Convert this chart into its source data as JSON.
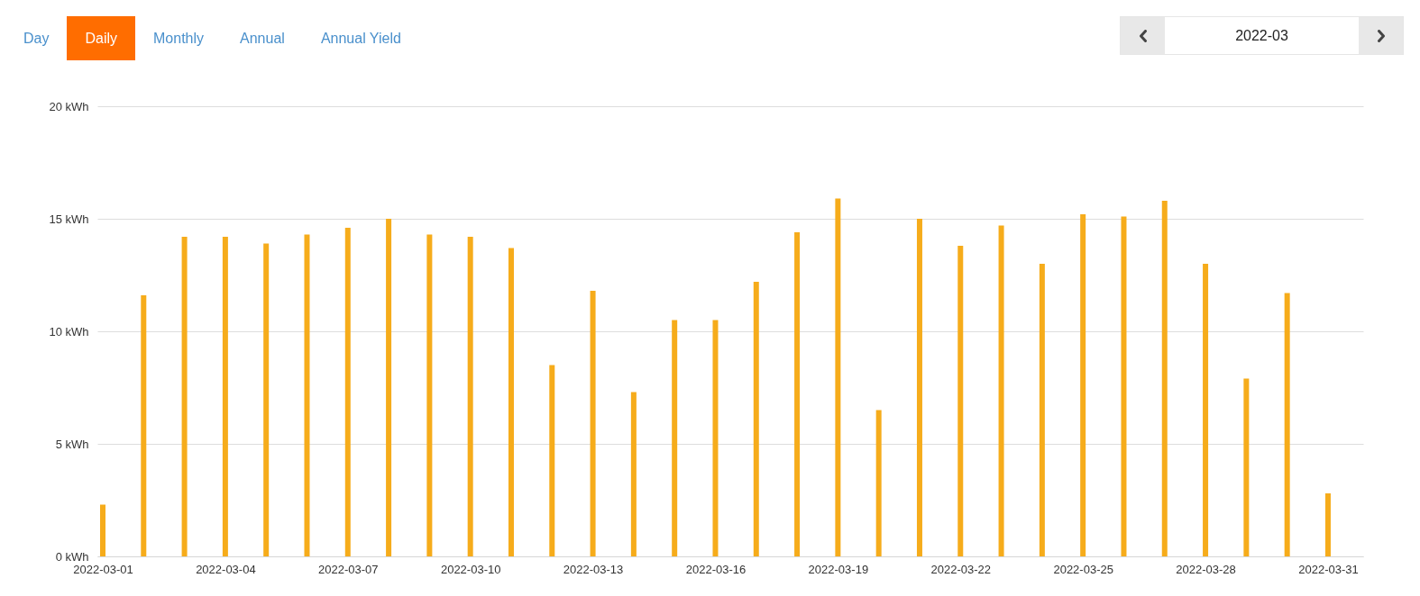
{
  "chart_data": {
    "type": "bar",
    "annotations": [
      "Day",
      "Daily",
      "Monthly",
      "Annual",
      "Annual Yield",
      "2022-03"
    ],
    "categories": [
      "2022-03-01",
      null,
      null,
      "2022-03-04",
      null,
      null,
      "2022-03-07",
      null,
      null,
      "2022-03-10",
      null,
      null,
      "2022-03-13",
      null,
      null,
      "2022-03-16",
      null,
      null,
      "2022-03-19",
      null,
      null,
      "2022-03-22",
      null,
      null,
      "2022-03-25",
      null,
      null,
      "2022-03-28",
      null,
      null,
      "2022-03-31"
    ],
    "values": [
      2.3,
      11.6,
      14.2,
      14.2,
      13.9,
      14.3,
      14.6,
      15.0,
      14.3,
      14.2,
      13.7,
      8.5,
      11.8,
      7.3,
      10.5,
      10.5,
      12.2,
      14.4,
      15.9,
      6.5,
      15.0,
      13.8,
      14.7,
      13.0,
      15.2,
      15.1,
      15.8,
      13.0,
      7.9,
      11.7,
      2.8
    ],
    "color": "#f6ac1b",
    "ylim": [
      0,
      20
    ],
    "yticks": [
      {
        "value": 0,
        "label": "0 kWh"
      },
      {
        "value": 5,
        "label": "5 kWh"
      },
      {
        "value": 10,
        "label": "10 kWh"
      },
      {
        "value": 15,
        "label": "15 kWh"
      },
      {
        "value": 20,
        "label": "20 kWh"
      }
    ],
    "grid": "y"
  }
}
